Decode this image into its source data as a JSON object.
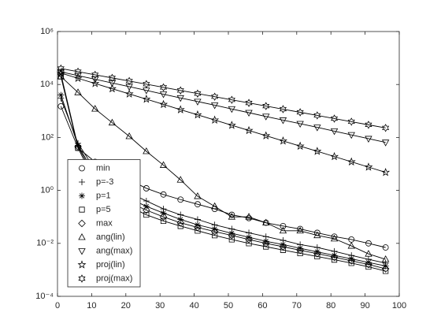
{
  "chart_data": {
    "type": "line",
    "log_y": true,
    "color": "#000000",
    "x": [
      1,
      6,
      11,
      16,
      21,
      26,
      31,
      36,
      41,
      46,
      51,
      56,
      61,
      66,
      71,
      76,
      81,
      86,
      91,
      96
    ],
    "xlim": [
      0,
      100
    ],
    "xticks": [
      0,
      10,
      20,
      30,
      40,
      50,
      60,
      70,
      80,
      90,
      100
    ],
    "ylim": [
      0.0001,
      1000000
    ],
    "yticks": [
      {
        "value": 0.0001,
        "label": "10⁻⁴"
      },
      {
        "value": 0.01,
        "label": "10⁻²"
      },
      {
        "value": 1,
        "label": "10⁰"
      },
      {
        "value": 100,
        "label": "10²"
      },
      {
        "value": 10000,
        "label": "10⁴"
      },
      {
        "value": 1000000,
        "label": "10⁶"
      }
    ],
    "legend": "southwest",
    "series": [
      {
        "name": "min",
        "marker": "o",
        "values": [
          1500,
          40,
          12,
          4,
          2.5,
          1.2,
          0.7,
          0.45,
          0.3,
          0.2,
          0.12,
          0.09,
          0.06,
          0.045,
          0.035,
          0.025,
          0.018,
          0.014,
          0.01,
          0.007
        ]
      },
      {
        "name": "p=-3",
        "marker": "+",
        "values": [
          3000,
          60,
          6,
          2,
          0.8,
          0.4,
          0.2,
          0.12,
          0.08,
          0.05,
          0.035,
          0.025,
          0.018,
          0.013,
          0.009,
          0.007,
          0.005,
          0.0035,
          0.0025,
          0.0018
        ]
      },
      {
        "name": "p=1",
        "marker": "*",
        "values": [
          4000,
          50,
          4,
          1.3,
          0.5,
          0.25,
          0.14,
          0.08,
          0.05,
          0.035,
          0.024,
          0.017,
          0.012,
          0.009,
          0.0065,
          0.0048,
          0.0035,
          0.0026,
          0.0019,
          0.0014
        ]
      },
      {
        "name": "p=5",
        "marker": "s",
        "values": [
          20000,
          40,
          2,
          0.6,
          0.25,
          0.12,
          0.07,
          0.045,
          0.03,
          0.02,
          0.014,
          0.01,
          0.0075,
          0.0056,
          0.0042,
          0.0032,
          0.0024,
          0.0018,
          0.0013,
          0.0009
        ]
      },
      {
        "name": "max",
        "marker": "d",
        "values": [
          25000,
          45,
          3,
          0.9,
          0.35,
          0.18,
          0.1,
          0.06,
          0.04,
          0.028,
          0.02,
          0.014,
          0.01,
          0.0075,
          0.0055,
          0.0041,
          0.003,
          0.0022,
          0.0016,
          0.0011
        ]
      },
      {
        "name": "ang(lin)",
        "marker": "^",
        "values": [
          20000,
          5000,
          1200,
          360,
          110,
          30,
          9,
          2.5,
          0.6,
          0.25,
          0.1,
          0.1,
          0.06,
          0.03,
          0.03,
          0.02,
          0.015,
          0.008,
          0.004,
          0.0025
        ]
      },
      {
        "name": "ang(max)",
        "marker": "v",
        "values": [
          30000,
          21700,
          15700,
          11400,
          8300,
          6000,
          4300,
          3100,
          2270,
          1650,
          1190,
          860,
          620,
          450,
          330,
          240,
          173,
          125,
          90,
          65
        ]
      },
      {
        "name": "proj(lin)",
        "marker": "p",
        "values": [
          27000,
          17100,
          10900,
          6900,
          4400,
          2800,
          1770,
          1120,
          715,
          454,
          288,
          183,
          116,
          74,
          47,
          30,
          19,
          12,
          7.6,
          4.8
        ]
      },
      {
        "name": "proj(max)",
        "marker": "h",
        "values": [
          40000,
          30500,
          23200,
          17700,
          13500,
          10300,
          7800,
          5950,
          4540,
          3460,
          2630,
          2010,
          1530,
          1170,
          890,
          680,
          515,
          393,
          300,
          229
        ]
      }
    ]
  }
}
